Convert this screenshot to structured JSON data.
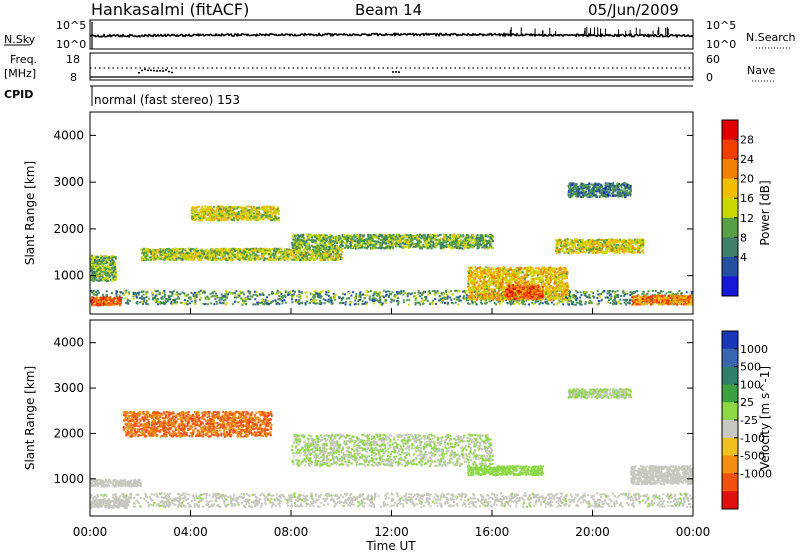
{
  "header": {
    "station": "Hankasalmi (fitACF)",
    "beam": "Beam 14",
    "date": "05/Jun/2009"
  },
  "strip": {
    "nsky_label": "N.Sky",
    "nsearch_label": "N.Search",
    "freq_label_1": "Freq.",
    "freq_label_2": "[MHz]",
    "nave_label": "Nave",
    "cpid_label": "CPID",
    "cpid_value": "normal (fast stereo) 153",
    "noise_ticks_left": [
      "10^5",
      "10^0"
    ],
    "noise_ticks_right": [
      "10^5",
      "10^0"
    ],
    "freq_ticks": [
      "18",
      "8"
    ],
    "nave_ticks": [
      "60",
      "0"
    ]
  },
  "axes": {
    "x_ticks": [
      "00:00",
      "04:00",
      "08:00",
      "12:00",
      "16:00",
      "20:00",
      "00:00"
    ],
    "x_label": "Time UT",
    "y_ticks": [
      "4000",
      "3000",
      "2000",
      "1000"
    ],
    "y_label": "Slant Range [km]"
  },
  "colorbars": {
    "power": {
      "label": "Power [dB]",
      "ticks": [
        "28",
        "24",
        "20",
        "16",
        "12",
        "8",
        "4"
      ],
      "colors": [
        "#e00000",
        "#f04000",
        "#f08000",
        "#f0c000",
        "#c8d800",
        "#58a048",
        "#3f7f6a",
        "#2550a0",
        "#1818d8"
      ]
    },
    "velocity": {
      "label": "Velocity [m s^-1]",
      "ticks": [
        "1000",
        "500",
        "100",
        "25",
        "-25",
        "-100",
        "-500",
        "-1000"
      ],
      "colors": [
        "#1838b8",
        "#3a68b0",
        "#2f7f6c",
        "#3ca040",
        "#8ed848",
        "#c8c8c0",
        "#f0c020",
        "#f09010",
        "#f05010",
        "#e01010"
      ]
    }
  },
  "chart_data": [
    {
      "type": "heatmap",
      "title": "Power [dB]",
      "xlabel": "Time UT",
      "ylabel": "Slant Range [km]",
      "xlim": [
        0,
        24
      ],
      "ylim": [
        180,
        4500
      ],
      "colorbar_range": [
        0,
        30
      ],
      "scatter_regions": [
        {
          "t_start": 0.0,
          "t_end": 24.0,
          "range_start": 400,
          "range_end": 700,
          "power_db": 10
        },
        {
          "t_start": 0.0,
          "t_end": 1.2,
          "range_start": 380,
          "range_end": 560,
          "power_db": 24
        },
        {
          "t_start": 0.0,
          "t_end": 1.0,
          "range_start": 900,
          "range_end": 1450,
          "power_db": 12
        },
        {
          "t_start": 2.0,
          "t_end": 10.0,
          "range_start": 1350,
          "range_end": 1600,
          "power_db": 14
        },
        {
          "t_start": 4.0,
          "t_end": 7.5,
          "range_start": 2200,
          "range_end": 2500,
          "power_db": 16
        },
        {
          "t_start": 8.0,
          "t_end": 16.0,
          "range_start": 1600,
          "range_end": 1900,
          "power_db": 12
        },
        {
          "t_start": 15.0,
          "t_end": 19.0,
          "range_start": 500,
          "range_end": 1200,
          "power_db": 18
        },
        {
          "t_start": 16.5,
          "t_end": 18.0,
          "range_start": 520,
          "range_end": 820,
          "power_db": 24
        },
        {
          "t_start": 18.5,
          "t_end": 22.0,
          "range_start": 1500,
          "range_end": 1800,
          "power_db": 16
        },
        {
          "t_start": 19.0,
          "t_end": 21.5,
          "range_start": 2700,
          "range_end": 3000,
          "power_db": 8
        },
        {
          "t_start": 21.5,
          "t_end": 24.0,
          "range_start": 400,
          "range_end": 600,
          "power_db": 22
        }
      ]
    },
    {
      "type": "heatmap",
      "title": "Velocity [m s^-1]",
      "xlabel": "Time UT",
      "ylabel": "Slant Range [km]",
      "xlim": [
        0,
        24
      ],
      "ylim": [
        180,
        4500
      ],
      "colorbar_range": [
        -1000,
        1000
      ],
      "scatter_regions": [
        {
          "t_start": 0.0,
          "t_end": 24.0,
          "range_start": 400,
          "range_end": 700,
          "velocity_ms": -25
        },
        {
          "t_start": 0.0,
          "t_end": 1.5,
          "range_start": 380,
          "range_end": 560,
          "velocity_ms": -100
        },
        {
          "t_start": 0.0,
          "t_end": 2.0,
          "range_start": 850,
          "range_end": 1000,
          "velocity_ms": -150
        },
        {
          "t_start": 1.3,
          "t_end": 7.2,
          "range_start": 1950,
          "range_end": 2500,
          "velocity_ms": -600
        },
        {
          "t_start": 8.0,
          "t_end": 16.0,
          "range_start": 1300,
          "range_end": 2000,
          "velocity_ms": 0
        },
        {
          "t_start": 15.0,
          "t_end": 18.0,
          "range_start": 1100,
          "range_end": 1300,
          "velocity_ms": 100
        },
        {
          "t_start": 19.0,
          "t_end": 21.5,
          "range_start": 2800,
          "range_end": 3000,
          "velocity_ms": 0
        },
        {
          "t_start": 21.5,
          "t_end": 24.0,
          "range_start": 900,
          "range_end": 1300,
          "velocity_ms": -150
        }
      ]
    }
  ]
}
